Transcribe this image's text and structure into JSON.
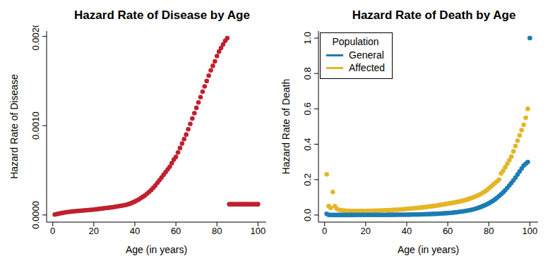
{
  "chart_data": [
    {
      "type": "scatter",
      "title": "Hazard Rate of Disease by Age",
      "x_label": "Age (in years)",
      "y_label": "Hazard Rate of Disease",
      "x": [
        1,
        2,
        3,
        4,
        5,
        6,
        7,
        8,
        9,
        10,
        11,
        12,
        13,
        14,
        15,
        16,
        17,
        18,
        19,
        20,
        21,
        22,
        23,
        24,
        25,
        26,
        27,
        28,
        29,
        30,
        31,
        32,
        33,
        34,
        35,
        36,
        37,
        38,
        39,
        40,
        41,
        42,
        43,
        44,
        45,
        46,
        47,
        48,
        49,
        50,
        51,
        52,
        53,
        54,
        55,
        56,
        57,
        58,
        59,
        60,
        61,
        62,
        63,
        64,
        65,
        66,
        67,
        68,
        69,
        70,
        71,
        72,
        73,
        74,
        75,
        76,
        77,
        78,
        79,
        80,
        81,
        82,
        83,
        84,
        85,
        86,
        87,
        88,
        89,
        90,
        91,
        92,
        93,
        94,
        95,
        96,
        97,
        98,
        99,
        100
      ],
      "values": [
        5e-06,
        1e-05,
        1.5e-05,
        2e-05,
        2.4e-05,
        2.8e-05,
        3.2e-05,
        3.5e-05,
        3.8e-05,
        4e-05,
        4.2e-05,
        4.4e-05,
        4.6e-05,
        4.8e-05,
        5e-05,
        5.2e-05,
        5.4e-05,
        5.6e-05,
        5.8e-05,
        6e-05,
        6.3e-05,
        6.6e-05,
        6.9e-05,
        7.2e-05,
        7.5e-05,
        7.8e-05,
        8e-05,
        8.3e-05,
        8.6e-05,
        9e-05,
        9.4e-05,
        9.8e-05,
        0.000102,
        0.000106,
        0.00011,
        0.000116,
        0.000122,
        0.00013,
        0.00014,
        0.00015,
        0.000162,
        0.000175,
        0.00019,
        0.000205,
        0.00022,
        0.00024,
        0.00026,
        0.00028,
        0.000305,
        0.00033,
        0.00036,
        0.00039,
        0.00042,
        0.00045,
        0.00048,
        0.00051,
        0.00054,
        0.00058,
        0.00062,
        0.00065,
        0.0007,
        0.00075,
        0.0008,
        0.00085,
        0.0009,
        0.00096,
        0.00102,
        0.00108,
        0.00114,
        0.0012,
        0.00126,
        0.00132,
        0.00138,
        0.00144,
        0.0015,
        0.00156,
        0.00162,
        0.00167,
        0.00172,
        0.00178,
        0.00183,
        0.00187,
        0.00191,
        0.00195,
        0.00198,
        0.00012,
        0.00012,
        0.00012,
        0.00012,
        0.00012,
        0.00012,
        0.00012,
        0.00012,
        0.00012,
        0.00012,
        0.00012,
        0.00012,
        0.00012,
        0.00012,
        0.00012
      ],
      "color": "#C0202F",
      "xlim": [
        -3,
        104
      ],
      "xticks": [
        0,
        20,
        40,
        60,
        80,
        100
      ],
      "ylim": [
        -8e-05,
        0.00206
      ],
      "yticks": [
        {
          "value": 0,
          "label": "0.0000"
        },
        {
          "value": 0.001,
          "label": "0.0010"
        },
        {
          "value": 0.002,
          "label": "0.0020"
        }
      ]
    },
    {
      "type": "scatter",
      "title": "Hazard Rate of Death by Age",
      "x_label": "Age (in years)",
      "y_label": "Hazard Rate of Death",
      "legend": "upper left",
      "legend_title": "Population",
      "x": [
        1,
        2,
        3,
        4,
        5,
        6,
        7,
        8,
        9,
        10,
        11,
        12,
        13,
        14,
        15,
        16,
        17,
        18,
        19,
        20,
        21,
        22,
        23,
        24,
        25,
        26,
        27,
        28,
        29,
        30,
        31,
        32,
        33,
        34,
        35,
        36,
        37,
        38,
        39,
        40,
        41,
        42,
        43,
        44,
        45,
        46,
        47,
        48,
        49,
        50,
        51,
        52,
        53,
        54,
        55,
        56,
        57,
        58,
        59,
        60,
        61,
        62,
        63,
        64,
        65,
        66,
        67,
        68,
        69,
        70,
        71,
        72,
        73,
        74,
        75,
        76,
        77,
        78,
        79,
        80,
        81,
        82,
        83,
        84,
        85,
        86,
        87,
        88,
        89,
        90,
        91,
        92,
        93,
        94,
        95,
        96,
        97,
        98,
        99,
        100
      ],
      "series": [
        {
          "name": "General",
          "color": "#1B7CB4",
          "values": [
            0.007,
            0.0008,
            0.0005,
            0.0004,
            0.0003,
            0.0003,
            0.0003,
            0.0002,
            0.0002,
            0.0002,
            0.0002,
            0.0002,
            0.0003,
            0.0004,
            0.0005,
            0.0006,
            0.0007,
            0.0008,
            0.0009,
            0.001,
            0.001,
            0.001,
            0.001,
            0.001,
            0.001,
            0.001,
            0.001,
            0.001,
            0.0011,
            0.0011,
            0.0012,
            0.0012,
            0.0013,
            0.0014,
            0.0015,
            0.0016,
            0.0017,
            0.0018,
            0.0019,
            0.002,
            0.0022,
            0.0024,
            0.0026,
            0.0028,
            0.003,
            0.0033,
            0.0036,
            0.004,
            0.0044,
            0.0048,
            0.0052,
            0.0057,
            0.0062,
            0.0067,
            0.0073,
            0.0079,
            0.0086,
            0.0094,
            0.0102,
            0.011,
            0.012,
            0.013,
            0.0142,
            0.0155,
            0.017,
            0.0185,
            0.02,
            0.022,
            0.024,
            0.026,
            0.028,
            0.031,
            0.034,
            0.037,
            0.041,
            0.045,
            0.05,
            0.055,
            0.06,
            0.066,
            0.073,
            0.08,
            0.088,
            0.097,
            0.107,
            0.117,
            0.128,
            0.14,
            0.153,
            0.167,
            0.181,
            0.196,
            0.212,
            0.229,
            0.246,
            0.263,
            0.28,
            0.29,
            0.3,
            1.0
          ]
        },
        {
          "name": "Affected",
          "color": "#E5B526",
          "values": [
            0.23,
            0.05,
            0.04,
            0.13,
            0.05,
            0.035,
            0.03,
            0.028,
            0.026,
            0.025,
            0.024,
            0.024,
            0.023,
            0.023,
            0.023,
            0.023,
            0.023,
            0.023,
            0.023,
            0.023,
            0.024,
            0.024,
            0.024,
            0.025,
            0.025,
            0.025,
            0.026,
            0.026,
            0.027,
            0.027,
            0.028,
            0.028,
            0.029,
            0.03,
            0.03,
            0.031,
            0.032,
            0.033,
            0.034,
            0.035,
            0.036,
            0.037,
            0.038,
            0.039,
            0.04,
            0.041,
            0.042,
            0.043,
            0.045,
            0.046,
            0.048,
            0.049,
            0.051,
            0.052,
            0.054,
            0.056,
            0.058,
            0.06,
            0.062,
            0.064,
            0.066,
            0.068,
            0.07,
            0.072,
            0.075,
            0.077,
            0.08,
            0.083,
            0.086,
            0.09,
            0.094,
            0.098,
            0.102,
            0.107,
            0.112,
            0.118,
            0.125,
            0.132,
            0.14,
            0.15,
            0.16,
            0.17,
            0.18,
            0.19,
            0.2,
            0.235,
            0.25,
            0.27,
            0.29,
            0.31,
            0.33,
            0.36,
            0.39,
            0.42,
            0.45,
            0.48,
            0.51,
            0.55,
            0.6,
            1.0
          ]
        }
      ],
      "xlim": [
        -3,
        104
      ],
      "xticks": [
        0,
        20,
        40,
        60,
        80,
        100
      ],
      "ylim": [
        -0.04,
        1.04
      ],
      "yticks": [
        {
          "value": 0,
          "label": "0.0"
        },
        0.2,
        0.4,
        0.6,
        0.8,
        {
          "value": 1,
          "label": "1.0"
        }
      ]
    }
  ]
}
